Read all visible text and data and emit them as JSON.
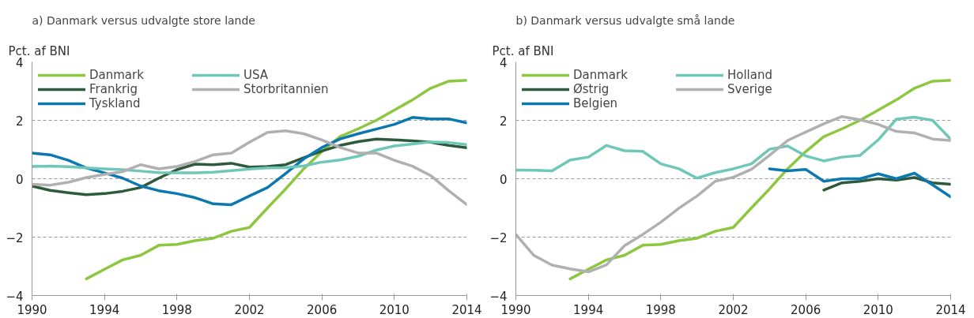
{
  "chart_data": [
    {
      "type": "line",
      "title": "a) Danmark versus udvalgte store lande",
      "ylabel": "Pct. af BNI",
      "x": [
        1990,
        1991,
        1992,
        1993,
        1994,
        1995,
        1996,
        1997,
        1998,
        1999,
        2000,
        2001,
        2002,
        2003,
        2004,
        2005,
        2006,
        2007,
        2008,
        2009,
        2010,
        2011,
        2012,
        2013,
        2014
      ],
      "xlim": [
        1990,
        2014
      ],
      "xticks": [
        1990,
        1994,
        1998,
        2002,
        2006,
        2010,
        2014
      ],
      "ylim": [
        -4,
        4
      ],
      "yticks": [
        -4,
        -2,
        0,
        2,
        4
      ],
      "grid": "y",
      "legend": "top left",
      "series": [
        {
          "name": "Danmark",
          "color": "#8dc63f",
          "values": [
            null,
            null,
            null,
            -3.43,
            -3.1,
            -2.78,
            -2.62,
            -2.28,
            -2.25,
            -2.12,
            -2.04,
            -1.8,
            -1.67,
            -1.0,
            -0.35,
            0.34,
            0.93,
            1.44,
            1.71,
            2.0,
            2.35,
            2.7,
            3.1,
            3.34,
            3.37
          ]
        },
        {
          "name": "Frankrig",
          "color": "#2d5a3a",
          "values": [
            -0.25,
            -0.4,
            -0.48,
            -0.55,
            -0.51,
            -0.43,
            -0.3,
            0.02,
            0.31,
            0.5,
            0.48,
            0.53,
            0.4,
            0.42,
            0.48,
            0.72,
            0.95,
            1.14,
            1.27,
            1.36,
            1.33,
            1.3,
            1.25,
            1.14,
            1.06
          ]
        },
        {
          "name": "Tyskland",
          "color": "#0b78b0",
          "values": [
            0.88,
            0.82,
            0.63,
            0.37,
            0.2,
            0.02,
            -0.25,
            -0.41,
            -0.51,
            -0.65,
            -0.86,
            -0.89,
            -0.59,
            -0.3,
            0.18,
            0.68,
            1.07,
            1.36,
            1.54,
            1.7,
            1.86,
            2.1,
            2.05,
            2.05,
            1.91
          ]
        },
        {
          "name": "USA",
          "color": "#6fc7b8",
          "values": [
            0.42,
            0.43,
            0.41,
            0.37,
            0.34,
            0.31,
            0.26,
            0.21,
            0.2,
            0.2,
            0.22,
            0.28,
            0.33,
            0.37,
            0.38,
            0.44,
            0.57,
            0.64,
            0.77,
            0.98,
            1.12,
            1.19,
            1.26,
            1.24,
            1.17
          ]
        },
        {
          "name": "Storbritannien",
          "color": "#b0b0b0",
          "values": [
            -0.19,
            -0.22,
            -0.12,
            0.04,
            0.15,
            0.24,
            0.48,
            0.34,
            0.42,
            0.59,
            0.82,
            0.88,
            1.25,
            1.59,
            1.64,
            1.54,
            1.33,
            1.07,
            0.88,
            0.88,
            0.63,
            0.43,
            0.11,
            -0.41,
            -0.89
          ]
        }
      ]
    },
    {
      "type": "line",
      "title": "b) Danmark versus udvalgte små lande",
      "ylabel": "Pct. af BNI",
      "x": [
        1990,
        1991,
        1992,
        1993,
        1994,
        1995,
        1996,
        1997,
        1998,
        1999,
        2000,
        2001,
        2002,
        2003,
        2004,
        2005,
        2006,
        2007,
        2008,
        2009,
        2010,
        2011,
        2012,
        2013,
        2014
      ],
      "xlim": [
        1990,
        2014
      ],
      "xticks": [
        1990,
        1994,
        1998,
        2002,
        2006,
        2010,
        2014
      ],
      "ylim": [
        -4,
        4
      ],
      "yticks": [
        -4,
        -2,
        0,
        2,
        4
      ],
      "grid": "y",
      "legend": "top left",
      "series": [
        {
          "name": "Danmark",
          "color": "#8dc63f",
          "values": [
            null,
            null,
            null,
            -3.43,
            -3.1,
            -2.78,
            -2.62,
            -2.28,
            -2.25,
            -2.12,
            -2.04,
            -1.8,
            -1.67,
            -1.0,
            -0.35,
            0.34,
            0.93,
            1.44,
            1.71,
            2.0,
            2.35,
            2.7,
            3.1,
            3.34,
            3.37
          ]
        },
        {
          "name": "Østrig",
          "color": "#2d5a3a",
          "values": [
            null,
            null,
            null,
            null,
            null,
            null,
            null,
            null,
            null,
            null,
            null,
            null,
            null,
            null,
            null,
            null,
            null,
            -0.39,
            -0.14,
            -0.09,
            0.0,
            -0.05,
            0.04,
            -0.14,
            -0.19
          ]
        },
        {
          "name": "Belgien",
          "color": "#0b78b0",
          "values": [
            null,
            null,
            null,
            null,
            null,
            null,
            null,
            null,
            null,
            null,
            null,
            null,
            null,
            null,
            0.34,
            0.27,
            0.32,
            -0.09,
            0.0,
            0.0,
            0.17,
            0.0,
            0.19,
            -0.21,
            -0.62
          ]
        },
        {
          "name": "Holland",
          "color": "#6fc7b8",
          "values": [
            0.3,
            0.29,
            0.27,
            0.64,
            0.74,
            1.14,
            0.96,
            0.94,
            0.51,
            0.34,
            0.02,
            0.21,
            0.34,
            0.51,
            1.01,
            1.12,
            0.78,
            0.61,
            0.74,
            0.8,
            1.33,
            2.04,
            2.11,
            2.0,
            1.36
          ]
        },
        {
          "name": "Sverige",
          "color": "#b0b0b0",
          "values": [
            -1.91,
            -2.63,
            -2.96,
            -3.09,
            -3.19,
            -2.95,
            -2.29,
            -1.91,
            -1.49,
            -1.01,
            -0.59,
            -0.09,
            0.05,
            0.32,
            0.8,
            1.31,
            1.6,
            1.88,
            2.13,
            2.02,
            1.86,
            1.62,
            1.57,
            1.36,
            1.31
          ]
        }
      ]
    }
  ]
}
